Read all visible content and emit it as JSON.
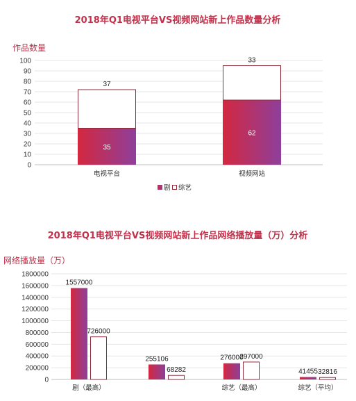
{
  "chart_data": [
    {
      "type": "bar",
      "stacked": true,
      "title": "2018年Q1电视平台VS视频网站新上作品数量分析",
      "ylabel": "作品数量",
      "ylim": [
        0,
        100
      ],
      "yticks": [
        0,
        10,
        20,
        30,
        40,
        50,
        60,
        70,
        80,
        90,
        100
      ],
      "categories": [
        "电视平台",
        "视频网站"
      ],
      "series": [
        {
          "name": "剧",
          "values": [
            35,
            62
          ],
          "color": "#c0305a"
        },
        {
          "name": "综艺",
          "values": [
            37,
            33
          ],
          "color": "#ffffff",
          "stroke": "#8c2a3a"
        }
      ],
      "legend": "bottom",
      "grid": true
    },
    {
      "type": "bar",
      "title": "2018年Q1电视平台VS视频网站新上作品网络播放量（万）分析",
      "ylabel": "网络播放量（万）",
      "ylim": [
        0,
        1800000
      ],
      "yticks": [
        0,
        200000,
        400000,
        600000,
        800000,
        1000000,
        1200000,
        1400000,
        1600000,
        1800000
      ],
      "categories": [
        "剧（最高）",
        "",
        "综艺（最高）",
        "综艺（平均）"
      ],
      "series": [
        {
          "values": [
            1557000,
            255106,
            276000,
            41455
          ],
          "color": "#c0305a"
        },
        {
          "values": [
            726000,
            68282,
            297000,
            32816
          ],
          "color": "#ffffff",
          "stroke": "#8c2a3a"
        }
      ],
      "grid": true
    }
  ]
}
